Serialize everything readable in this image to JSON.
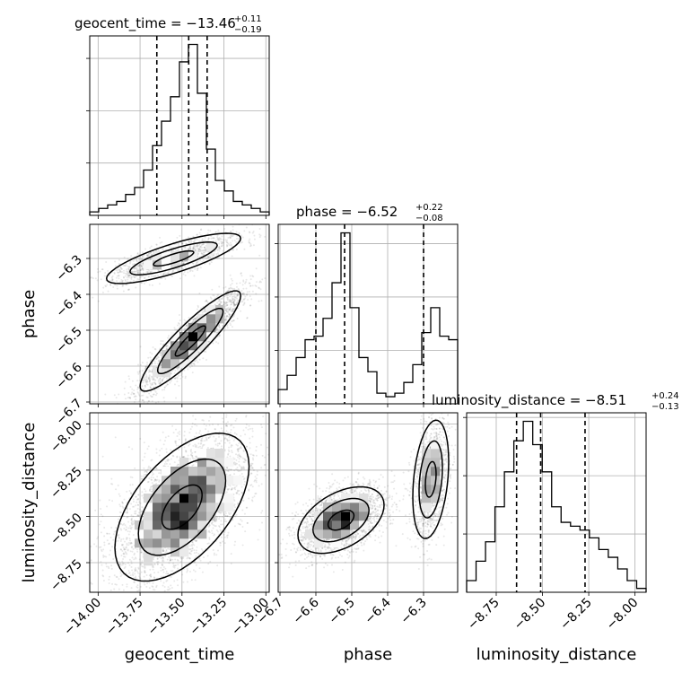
{
  "chart_data": {
    "type": "corner",
    "parameters": [
      "geocent_time",
      "phase",
      "luminosity_distance"
    ],
    "titles": [
      {
        "parameter": "geocent_time",
        "prefix": "geocent_time = −13.46",
        "plus": "+0.11",
        "minus": "−0.19"
      },
      {
        "parameter": "phase",
        "prefix": "phase = −6.52",
        "plus": "+0.22",
        "minus": "−0.08"
      },
      {
        "parameter": "luminosity_distance",
        "prefix": "luminosity_distance = −8.51",
        "plus": "+0.24",
        "minus": "−0.13"
      }
    ],
    "axis_labels": {
      "geocent_time": "geocent_time",
      "phase": "phase",
      "luminosity_distance": "luminosity_distance"
    },
    "ranges": {
      "geocent_time": [
        -14.05,
        -12.98
      ],
      "phase": [
        -6.705,
        -6.205
      ],
      "luminosity_distance": [
        -8.91,
        -7.94
      ]
    },
    "ticks": {
      "geocent_time": [
        {
          "v": -14.0,
          "label": "−14.00"
        },
        {
          "v": -13.75,
          "label": "−13.75"
        },
        {
          "v": -13.5,
          "label": "−13.50"
        },
        {
          "v": -13.25,
          "label": "−13.25"
        },
        {
          "v": -13.0,
          "label": "−13.00"
        }
      ],
      "phase": [
        {
          "v": -6.7,
          "label": "−6.7"
        },
        {
          "v": -6.6,
          "label": "−6.6"
        },
        {
          "v": -6.5,
          "label": "−6.5"
        },
        {
          "v": -6.4,
          "label": "−6.4"
        },
        {
          "v": -6.3,
          "label": "−6.3"
        }
      ],
      "luminosity_distance": [
        {
          "v": -8.75,
          "label": "−8.75"
        },
        {
          "v": -8.5,
          "label": "−8.50"
        },
        {
          "v": -8.25,
          "label": "−8.25"
        },
        {
          "v": -8.0,
          "label": "−8.00"
        }
      ]
    },
    "quantiles": {
      "geocent_time": [
        -13.65,
        -13.46,
        -13.35
      ],
      "phase": [
        -6.6,
        -6.52,
        -6.3
      ],
      "luminosity_distance": [
        -8.64,
        -8.51,
        -8.27
      ]
    },
    "histograms": {
      "geocent_time": {
        "edges_range": [
          -14.05,
          -12.98
        ],
        "counts": [
          1,
          2,
          3,
          4,
          6,
          8,
          13,
          20,
          27,
          34,
          44,
          49,
          35,
          19,
          10,
          7,
          4,
          3,
          2,
          1
        ]
      },
      "phase": {
        "edges_range": [
          -6.705,
          -6.205
        ],
        "counts": [
          4,
          8,
          13,
          18,
          19,
          24,
          34,
          48,
          27,
          13,
          9,
          3,
          2,
          3,
          6,
          11,
          20,
          27,
          19,
          18
        ]
      },
      "luminosity_distance": {
        "edges_range": [
          -8.91,
          -7.94
        ],
        "counts": [
          3,
          8,
          13,
          22,
          31,
          39,
          44,
          38,
          31,
          22,
          18,
          17,
          16,
          14,
          11,
          9,
          6,
          3,
          1
        ]
      }
    },
    "scatter": {
      "geocent_time_vs_phase": {
        "mode": "bimodal",
        "clusters": [
          {
            "center": [
              -13.45,
              -6.53
            ],
            "std": [
              0.15,
              0.07
            ],
            "corr": 0.9,
            "n": 2600
          },
          {
            "center": [
              -13.55,
              -6.3
            ],
            "std": [
              0.2,
              0.035
            ],
            "corr": 0.8,
            "n": 1300
          }
        ]
      },
      "geocent_time_vs_luminosity_distance": {
        "clusters": [
          {
            "center": [
              -13.5,
              -8.45
            ],
            "std": [
              0.2,
              0.2
            ],
            "corr": 0.55,
            "n": 3800
          }
        ]
      },
      "phase_vs_luminosity_distance": {
        "clusters": [
          {
            "center": [
              -6.53,
              -8.52
            ],
            "std": [
              0.06,
              0.09
            ],
            "corr": 0.45,
            "n": 2300
          },
          {
            "center": [
              -6.28,
              -8.3
            ],
            "std": [
              0.025,
              0.16
            ],
            "corr": 0.3,
            "n": 1300
          }
        ]
      }
    },
    "grid": true
  }
}
